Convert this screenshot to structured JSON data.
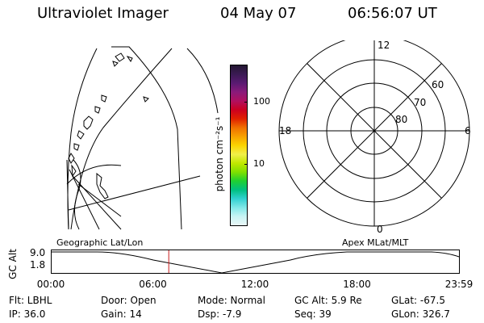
{
  "header": {
    "title": "Ultraviolet Imager",
    "date": "04 May 07",
    "time": "06:56:07 UT"
  },
  "colorbar": {
    "unit_label": "photon cm⁻²s⁻¹",
    "ticks": [
      {
        "label": "100",
        "value": 100
      },
      {
        "label": "10",
        "value": 10
      }
    ],
    "colors": [
      "#241732",
      "#3b1a54",
      "#5a1a72",
      "#8a1a7a",
      "#b01060",
      "#cc0020",
      "#e02000",
      "#f07000",
      "#f7a000",
      "#fbd400",
      "#f2f04a",
      "#c2e800",
      "#80e000",
      "#20d030",
      "#00c080",
      "#30d0d0",
      "#80e8e8",
      "#c8f4f4",
      "#eaf6f6"
    ]
  },
  "polar": {
    "labels": {
      "top": "12",
      "bottom": "0",
      "left": "18",
      "right": "6"
    },
    "rings": [
      "60",
      "70",
      "80"
    ]
  },
  "map_labels": {
    "left": "Geographic Lat/Lon",
    "right": "Apex MLat/MLT"
  },
  "timeline": {
    "axis_title": "GC Alt",
    "y_ticks": [
      "9.0",
      "1.8"
    ],
    "x_ticks": [
      "00:00",
      "06:00",
      "12:00",
      "18:00",
      "23:59"
    ],
    "current_time_hours": 6.935,
    "marker_color": "#c81e1e"
  },
  "info": {
    "flt": "Flt: LBHL",
    "ip": "IP: 36.0",
    "door": "Door: Open",
    "gain": "Gain: 14",
    "mode": "Mode: Normal",
    "dsp": "Dsp:     -7.9",
    "gcalt": "GC Alt: 5.9 Re",
    "seq": "Seq: 39",
    "glat": "GLat: -67.5",
    "glon": "GLon: 326.7"
  }
}
